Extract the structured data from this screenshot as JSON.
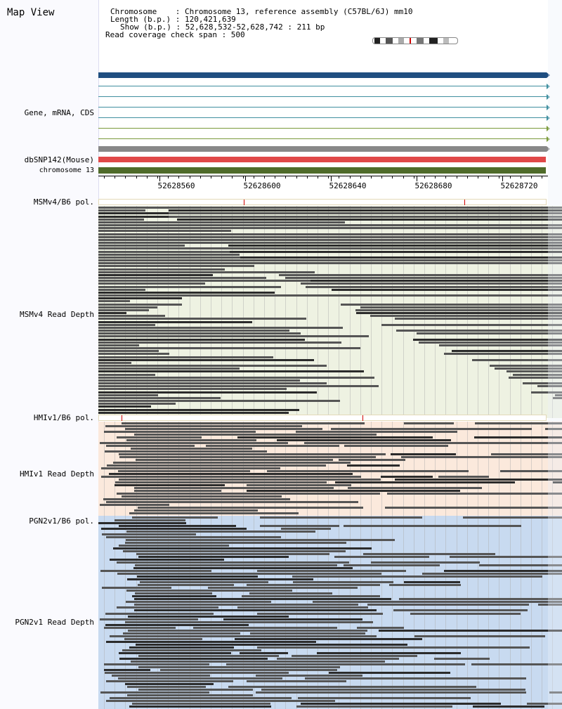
{
  "view": {
    "title": "Map View",
    "info": {
      "chromosome": "Chromosome    : Chromosome 13, reference assembly (C57BL/6J) mm10",
      "length": "Length (b.p.) : 120,421,639",
      "show": "Show (b.p.) : 52,628,532-52,628,742 : 211 bp",
      "coverage": "Read coverage check span : 500"
    }
  },
  "tracks": {
    "gene_label": "Gene, mRNA, CDS",
    "dbsnp_label": "dbSNP142(Mouse)",
    "chrom_label": "chromosome 13",
    "msm_pol_label": "MSMv4/B6 pol.",
    "msm_depth_label": "MSMv4 Read Depth",
    "hmi_pol_label": "HMIv1/B6 pol.",
    "hmi_depth_label": "HMIv1 Read Depth",
    "pgn_pol_label": "PGN2v1/B6 pol.",
    "pgn_depth_label": "PGN2v1 Read Depth"
  },
  "axis": {
    "ticks": [
      "52628560",
      "52628600",
      "52628640",
      "52628680",
      "52628720"
    ]
  },
  "colors": {
    "gene_main": "#1f4e80",
    "gene_lines": [
      "#3f8f9f",
      "#3f8f9f",
      "#3f8f9f",
      "#3f8f9f",
      "#7a9a3a",
      "#7a9a3a",
      "#7a9a3a"
    ],
    "gene_gray": "#888888",
    "dbsnp": "#e04848",
    "chromosome": "#4f6b2a",
    "msm_bg": "#eef2e2",
    "hmi_bg": "#fbe9dc",
    "pgn_bg": "#c8daf0",
    "snp_mark": "#d00000"
  }
}
